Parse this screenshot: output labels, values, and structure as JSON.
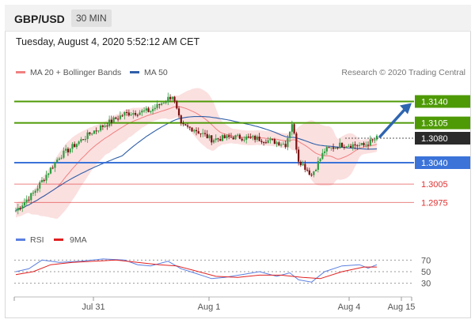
{
  "header": {
    "symbol": "GBP/USD",
    "timeframe": "30 MIN"
  },
  "timestamp": "Tuesday, August 4, 2020 5:52:12 AM CET",
  "legend": {
    "items": [
      {
        "label": "MA 20 + Bollinger Bands",
        "color": "#f08080"
      },
      {
        "label": "MA 50",
        "color": "#2f5fa8"
      }
    ],
    "credit": "Research © 2020 Trading Central"
  },
  "rsi_legend": {
    "items": [
      {
        "label": "RSI",
        "color": "#5b7fe0"
      },
      {
        "label": "9MA",
        "color": "#e02020"
      }
    ]
  },
  "colors": {
    "bull": "#2e9e40",
    "bear": "#7a1010",
    "resistance": "#4e9a06",
    "support": "#3b73d9",
    "target": "#e03030",
    "arrow": "#2f65b0",
    "current": "#2b2b2b"
  },
  "chart_data": [
    {
      "type": "candlestick",
      "title": "GBP/USD",
      "x_tick_labels": [
        "Jul 31",
        "Aug 1",
        "Aug 4",
        "Aug 15"
      ],
      "ylim": [
        1.296,
        1.316
      ],
      "current_price": 1.308,
      "levels": [
        {
          "value": 1.314,
          "label": "1.3140",
          "kind": "resistance"
        },
        {
          "value": 1.3105,
          "label": "1.3105",
          "kind": "resistance"
        },
        {
          "value": 1.304,
          "label": "1.3040",
          "kind": "support"
        },
        {
          "value": 1.3005,
          "label": "1.3005",
          "kind": "support"
        },
        {
          "value": 1.2975,
          "label": "1.2975",
          "kind": "support"
        }
      ],
      "path": [
        {
          "t": 0,
          "v": 1.2962
        },
        {
          "t": 8,
          "v": 1.299
        },
        {
          "t": 20,
          "v": 1.305
        },
        {
          "t": 35,
          "v": 1.309
        },
        {
          "t": 50,
          "v": 1.312
        },
        {
          "t": 62,
          "v": 1.3125
        },
        {
          "t": 72,
          "v": 1.315
        },
        {
          "t": 76,
          "v": 1.31
        },
        {
          "t": 82,
          "v": 1.3095
        },
        {
          "t": 90,
          "v": 1.3078
        },
        {
          "t": 100,
          "v": 1.3082
        },
        {
          "t": 110,
          "v": 1.308
        },
        {
          "t": 118,
          "v": 1.3075
        },
        {
          "t": 124,
          "v": 1.307
        },
        {
          "t": 127,
          "v": 1.3105
        },
        {
          "t": 130,
          "v": 1.3045
        },
        {
          "t": 136,
          "v": 1.302
        },
        {
          "t": 142,
          "v": 1.306
        },
        {
          "t": 150,
          "v": 1.307
        },
        {
          "t": 160,
          "v": 1.3068
        },
        {
          "t": 166,
          "v": 1.308
        }
      ]
    },
    {
      "type": "line",
      "title": "RSI",
      "yticks": [
        70,
        50,
        30
      ],
      "ylim": [
        20,
        80
      ],
      "series": [
        {
          "name": "RSI",
          "points": [
            [
              0,
              50
            ],
            [
              6,
              55
            ],
            [
              12,
              70
            ],
            [
              20,
              66
            ],
            [
              30,
              68
            ],
            [
              40,
              72
            ],
            [
              50,
              70
            ],
            [
              56,
              62
            ],
            [
              62,
              60
            ],
            [
              70,
              68
            ],
            [
              76,
              55
            ],
            [
              82,
              48
            ],
            [
              90,
              38
            ],
            [
              96,
              40
            ],
            [
              104,
              45
            ],
            [
              112,
              50
            ],
            [
              120,
              42
            ],
            [
              126,
              48
            ],
            [
              130,
              36
            ],
            [
              136,
              32
            ],
            [
              142,
              50
            ],
            [
              150,
              60
            ],
            [
              158,
              62
            ],
            [
              162,
              56
            ],
            [
              166,
              62
            ]
          ]
        },
        {
          "name": "9MA",
          "points": [
            [
              0,
              45
            ],
            [
              8,
              50
            ],
            [
              16,
              62
            ],
            [
              26,
              66
            ],
            [
              36,
              68
            ],
            [
              46,
              70
            ],
            [
              56,
              66
            ],
            [
              66,
              62
            ],
            [
              74,
              60
            ],
            [
              82,
              52
            ],
            [
              92,
              42
            ],
            [
              102,
              40
            ],
            [
              112,
              44
            ],
            [
              122,
              44
            ],
            [
              132,
              40
            ],
            [
              140,
              38
            ],
            [
              150,
              50
            ],
            [
              160,
              58
            ],
            [
              166,
              58
            ]
          ]
        }
      ]
    }
  ]
}
